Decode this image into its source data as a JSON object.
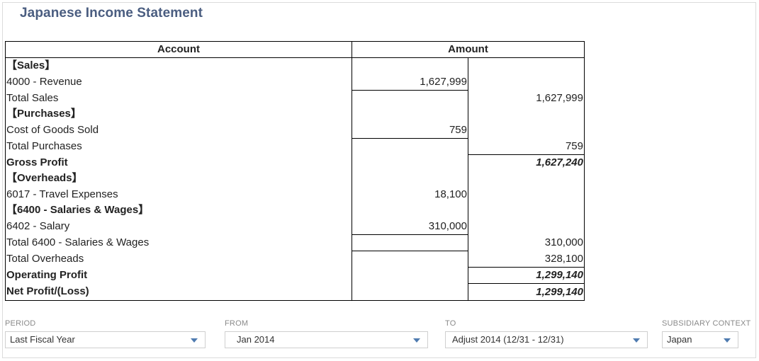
{
  "report": {
    "title": "Japanese Income Statement",
    "headers": {
      "account": "Account",
      "amount": "Amount"
    },
    "rows": [
      {
        "account": "【Sales】",
        "a1": "",
        "a2": "",
        "style": "bold"
      },
      {
        "account": "4000 - Revenue",
        "a1": "1,627,999",
        "a2": "",
        "style": ""
      },
      {
        "account": "Total Sales",
        "a1": "",
        "a2": "1,627,999",
        "style": ""
      },
      {
        "account": "【Purchases】",
        "a1": "",
        "a2": "",
        "style": "bold"
      },
      {
        "account": "Cost of Goods Sold",
        "a1": "759",
        "a2": "",
        "style": ""
      },
      {
        "account": "Total Purchases",
        "a1": "",
        "a2": "759",
        "style": ""
      },
      {
        "account": "Gross Profit",
        "a1": "",
        "a2": "1,627,240",
        "style": "total"
      },
      {
        "account": "【Overheads】",
        "a1": "",
        "a2": "",
        "style": "bold"
      },
      {
        "account": "6017 - Travel Expenses",
        "a1": "18,100",
        "a2": "",
        "style": ""
      },
      {
        "account": "【6400 - Salaries & Wages】",
        "a1": "",
        "a2": "",
        "style": "bold"
      },
      {
        "account": "6402 - Salary",
        "a1": "310,000",
        "a2": "",
        "style": ""
      },
      {
        "account": "Total 6400 - Salaries & Wages",
        "a1": "",
        "a2": "310,000",
        "style": ""
      },
      {
        "account": "Total Overheads",
        "a1": "",
        "a2": "328,100",
        "style": ""
      },
      {
        "account": "Operating Profit",
        "a1": "",
        "a2": "1,299,140",
        "style": "total"
      },
      {
        "account": "Net Profit/(Loss)",
        "a1": "",
        "a2": "1,299,140",
        "style": "total"
      }
    ]
  },
  "filters": {
    "period": {
      "label": "PERIOD",
      "value": "Last Fiscal Year"
    },
    "from": {
      "label": "FROM",
      "value": "Jan 2014"
    },
    "to": {
      "label": "TO",
      "value": "Adjust 2014 (12/31 - 12/31)"
    },
    "subsidiary": {
      "label": "SUBSIDIARY CONTEXT",
      "value": "Japan"
    }
  },
  "colors": {
    "title": "#4a5d80",
    "caret": "#4f7bb0"
  }
}
